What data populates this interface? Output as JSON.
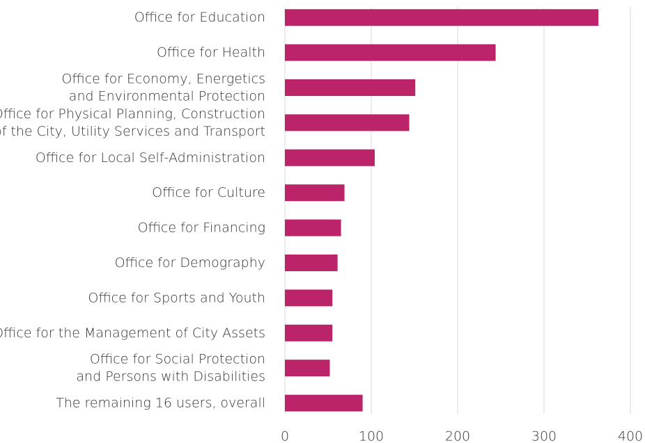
{
  "chart_data": {
    "type": "bar",
    "orientation": "horizontal",
    "categories": [
      "Office for Education",
      "Office for Health",
      "Office for Economy, Energetics\nand Environmental Protection",
      "Office for Physical Planning, Construction\nof the City, Utility Services and Transport",
      "Office for Local Self-Administration",
      "Office for Culture",
      "Office for Financing",
      "Office for Demography",
      "Office for Sports and Youth",
      "Office for the Management of City Assets",
      "Office for Social Protection\nand Persons with Disabilities",
      "The remaining 16 users, overall"
    ],
    "values": [
      363,
      244,
      151,
      144,
      104,
      69,
      65,
      61,
      55,
      55,
      52,
      90
    ],
    "color": "#bb2469",
    "xlim": [
      0,
      400
    ],
    "xticks": [
      0,
      100,
      200,
      300,
      400
    ],
    "grid": true
  }
}
